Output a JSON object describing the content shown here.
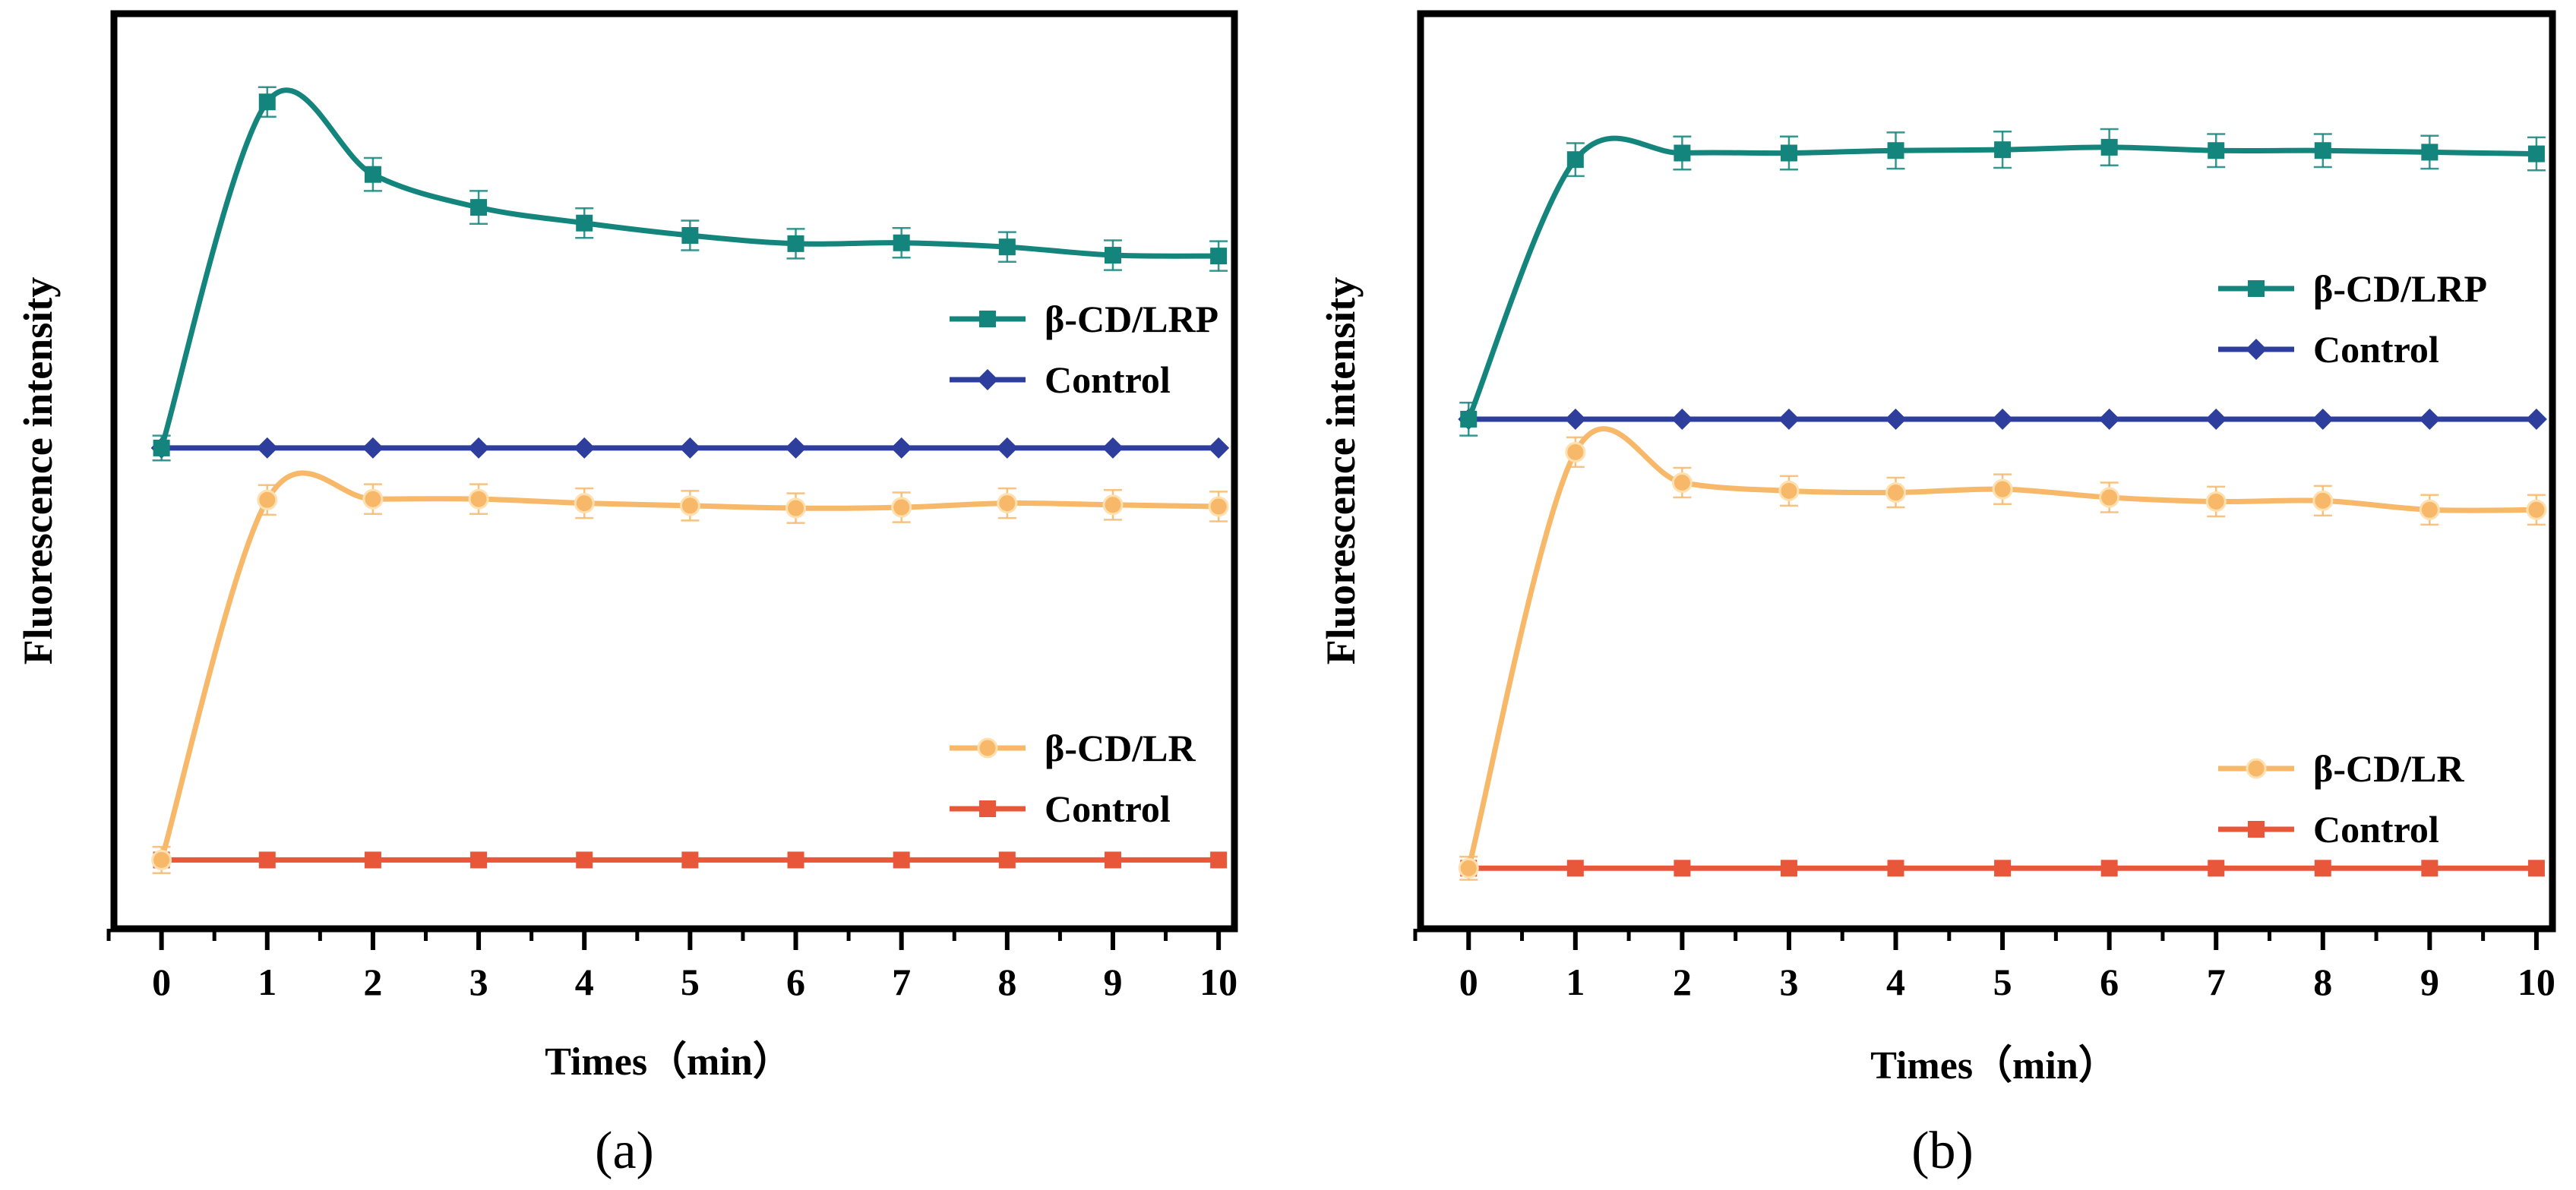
{
  "chart_data": [
    {
      "type": "line",
      "panel_label": "(a)",
      "xlabel": "Times（min）",
      "ylabel": "Fluorescence intensity",
      "x": [
        0,
        1,
        2,
        3,
        4,
        5,
        6,
        7,
        8,
        9,
        10
      ],
      "xlim": [
        -0.45,
        10.15
      ],
      "ylim": [
        0,
        100
      ],
      "y_ticks_shown": false,
      "grid": false,
      "series": [
        {
          "name": "β-CD/LRP",
          "color": "#14857d",
          "marker": "square",
          "values": [
            54.2,
            96.2,
            87.4,
            83.4,
            81.5,
            80.0,
            79.0,
            79.1,
            78.6,
            77.6,
            77.5
          ],
          "errors": [
            1.5,
            1.8,
            2.0,
            2.0,
            1.8,
            1.8,
            1.8,
            1.8,
            1.8,
            1.8,
            1.8
          ]
        },
        {
          "name": "Control",
          "color": "#2e3e9c",
          "marker": "diamond",
          "values": [
            54.2,
            54.2,
            54.2,
            54.2,
            54.2,
            54.2,
            54.2,
            54.2,
            54.2,
            54.2,
            54.2
          ],
          "errors": [
            0,
            0,
            0,
            0,
            0,
            0,
            0,
            0,
            0,
            0,
            0
          ]
        },
        {
          "name": "β-CD/LR",
          "color": "#f7b86a",
          "marker": "circle",
          "values": [
            4.2,
            47.9,
            48.0,
            48.0,
            47.5,
            47.2,
            46.9,
            47.0,
            47.5,
            47.3,
            47.1
          ],
          "errors": [
            1.6,
            1.8,
            1.8,
            1.8,
            1.8,
            1.8,
            1.8,
            1.8,
            1.8,
            1.8,
            1.8
          ]
        },
        {
          "name": "Control",
          "color": "#e9573a",
          "marker": "square",
          "values": [
            4.2,
            4.2,
            4.2,
            4.2,
            4.2,
            4.2,
            4.2,
            4.2,
            4.2,
            4.2,
            4.2
          ],
          "errors": [
            0,
            0,
            0,
            0,
            0,
            0,
            0,
            0,
            0,
            0,
            0
          ]
        }
      ],
      "legend": [
        {
          "placement": "upper-right",
          "entries": [
            "β-CD/LRP",
            "Control"
          ]
        },
        {
          "placement": "lower-right",
          "entries": [
            "β-CD/LR",
            "Control"
          ]
        }
      ]
    },
    {
      "type": "line",
      "panel_label": "(b)",
      "xlabel": "Times（min）",
      "ylabel": "Fluorescence intensity",
      "x": [
        0,
        1,
        2,
        3,
        4,
        5,
        6,
        7,
        8,
        9,
        10
      ],
      "xlim": [
        -0.45,
        10.15
      ],
      "ylim": [
        0,
        100
      ],
      "y_ticks_shown": false,
      "grid": false,
      "series": [
        {
          "name": "β-CD/LRP",
          "color": "#14857d",
          "marker": "square",
          "values": [
            57.7,
            89.2,
            90.0,
            90.0,
            90.3,
            90.4,
            90.7,
            90.3,
            90.3,
            90.1,
            89.9
          ],
          "errors": [
            2.0,
            2.0,
            2.0,
            2.0,
            2.2,
            2.2,
            2.2,
            2.0,
            2.0,
            2.0,
            2.0
          ]
        },
        {
          "name": "Control",
          "color": "#2e3e9c",
          "marker": "diamond",
          "values": [
            57.7,
            57.7,
            57.7,
            57.7,
            57.7,
            57.7,
            57.7,
            57.7,
            57.7,
            57.7,
            57.7
          ],
          "errors": [
            0,
            0,
            0,
            0,
            0,
            0,
            0,
            0,
            0,
            0,
            0
          ]
        },
        {
          "name": "β-CD/LR",
          "color": "#f7b86a",
          "marker": "circle",
          "values": [
            3.2,
            53.7,
            50.0,
            49.0,
            48.8,
            49.2,
            48.2,
            47.7,
            47.8,
            46.7,
            46.7
          ],
          "errors": [
            1.4,
            1.8,
            1.8,
            1.8,
            1.8,
            1.8,
            1.8,
            1.8,
            1.8,
            1.8,
            1.8
          ]
        },
        {
          "name": "Control",
          "color": "#e9573a",
          "marker": "square",
          "values": [
            3.2,
            3.2,
            3.2,
            3.2,
            3.2,
            3.2,
            3.2,
            3.2,
            3.2,
            3.2,
            3.2
          ],
          "errors": [
            0,
            0,
            0,
            0,
            0,
            0,
            0,
            0,
            0,
            0,
            0
          ]
        }
      ],
      "legend": [
        {
          "placement": "upper-right",
          "entries": [
            "β-CD/LRP",
            "Control"
          ]
        },
        {
          "placement": "lower-right",
          "entries": [
            "β-CD/LR",
            "Control"
          ]
        }
      ]
    }
  ]
}
